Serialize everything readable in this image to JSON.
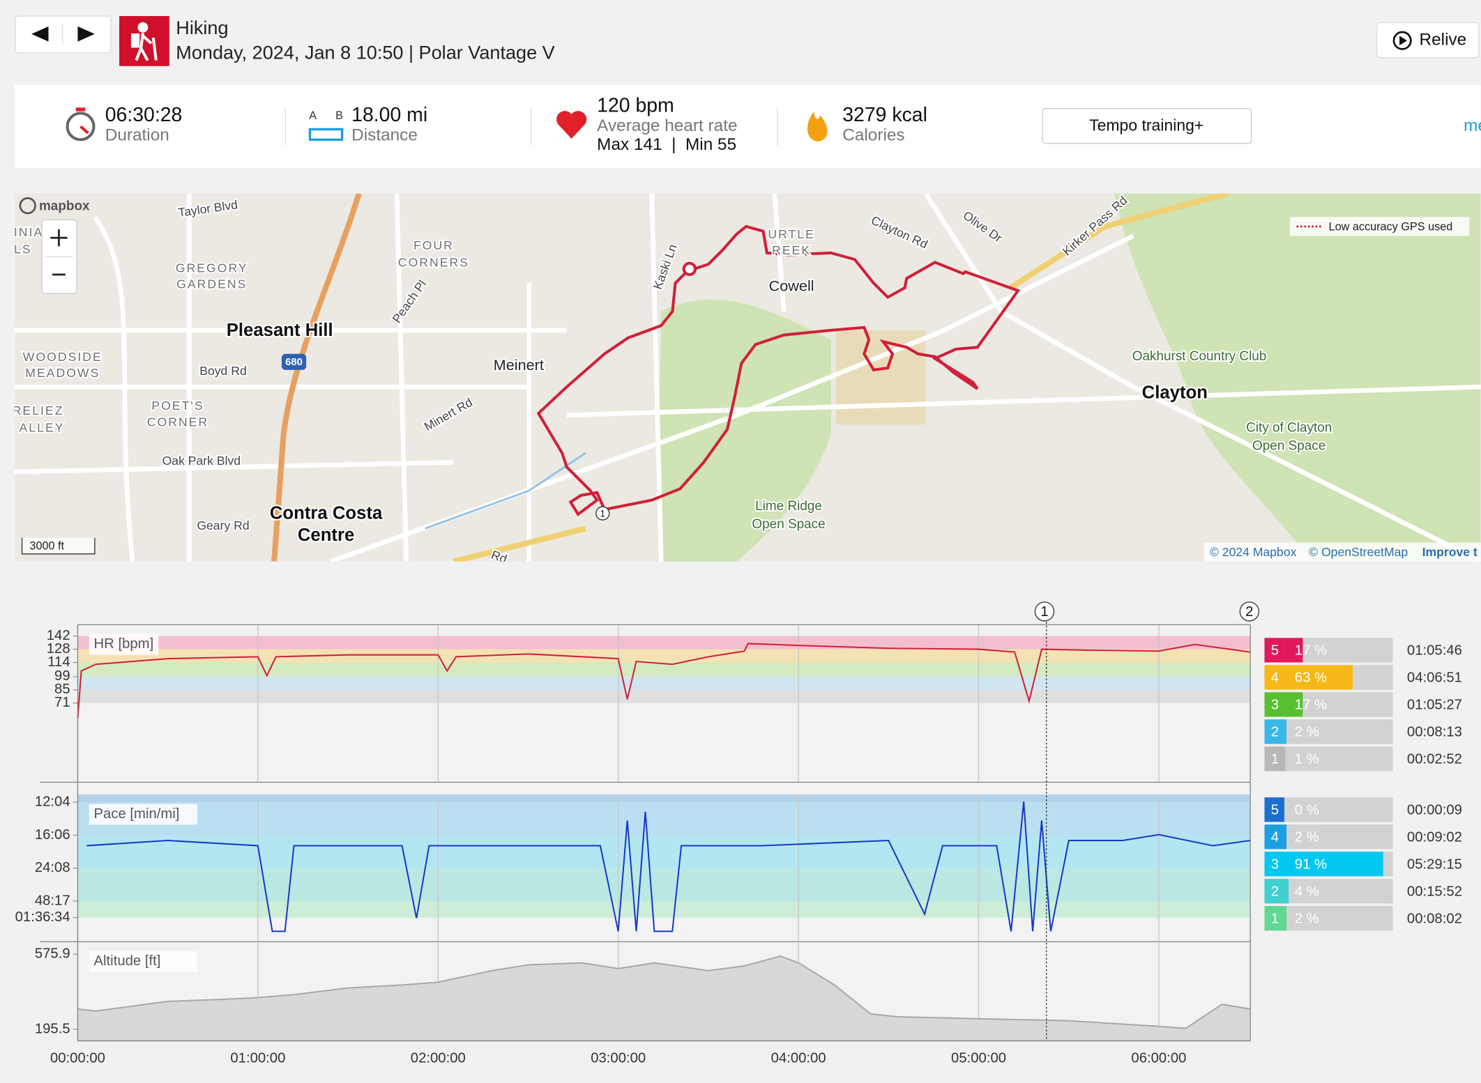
{
  "header": {
    "activity": "Hiking",
    "details": "Monday, 2024, Jan 8 10:50 | Polar Vantage V",
    "relive": "Relive"
  },
  "summary": {
    "duration": "06:30:28",
    "duration_label": "Duration",
    "distance_icon": [
      "A",
      "B"
    ],
    "distance": "18.00 mi",
    "distance_label": "Distance",
    "heart_rate": "120 bpm",
    "heart_rate_label": "Average heart rate",
    "heart_rate_range": "Max 141  |  Min 55",
    "calories": "3279 kcal",
    "calories_label": "Calories",
    "training_button": "Tempo training+",
    "more": "me"
  },
  "map": {
    "logo": "mapbox",
    "labels": [
      "Taylor Blvd",
      "GREGORY",
      "GARDENS",
      "FOUR",
      "CORNERS",
      "Pleasant Hill",
      "Peach Pl",
      "Meinert",
      "Minert Rd",
      "Boyd Rd",
      "WOODSIDE",
      "MEADOWS",
      "POET'S",
      "CORNER",
      "RELIEZ",
      "ALLEY",
      "INIA",
      "LS",
      "Oak Park Blvd",
      "Geary Rd",
      "Contra Costa",
      "Centre",
      "Kaski Ln",
      "URTLE",
      "REEK",
      "Cowell",
      "Clayton Rd",
      "Olive Dr",
      "Kirker Pass Rd",
      "Oakhurst Country Club",
      "Clayton",
      "City of Clayton",
      "Open Space",
      "Lime Ridge",
      "Open Space",
      "Rd"
    ],
    "legend": "Low accuracy GPS used",
    "scale": "3000 ft",
    "route_marker": "1",
    "highway_shield": "680",
    "attribution": [
      "© 2024 Mapbox",
      "© OpenStreetMap",
      "Improve t"
    ]
  },
  "chart_markers": [
    "1",
    "2"
  ],
  "chart_data": [
    {
      "type": "line",
      "title": "HR [bpm]",
      "color": "#d0203a",
      "xlim": [
        0,
        23428
      ],
      "ylim": [
        -12,
        154
      ],
      "yticks": [
        142,
        128,
        114,
        99,
        85,
        71
      ],
      "grid": true,
      "band_colors": [
        "#f3b6c8",
        "#f6dfa8",
        "#cfe9b8",
        "#c9e3f1",
        "#dcdcdc"
      ],
      "x": [
        0,
        72,
        360,
        1800,
        3600,
        3780,
        3960,
        5400,
        7200,
        7380,
        7560,
        9000,
        10800,
        10980,
        11160,
        11880,
        12600,
        13320,
        13392,
        14400,
        16200,
        18000,
        18720,
        19008,
        19260,
        20160,
        21600,
        22320,
        23428
      ],
      "values": [
        55,
        105,
        112,
        118,
        120,
        100,
        120,
        122,
        122,
        105,
        120,
        123,
        118,
        75,
        115,
        112,
        120,
        126,
        134,
        132,
        129,
        128,
        125,
        73,
        128,
        127,
        126,
        133,
        125
      ],
      "zones": {
        "labels": [
          "5",
          "4",
          "3",
          "2",
          "1"
        ],
        "values": [
          17,
          63,
          17,
          2,
          1
        ],
        "value_labels": [
          "17 %",
          "63 %",
          "17 %",
          "2 %",
          "1 %"
        ],
        "durations": [
          "01:05:46",
          "04:06:51",
          "01:05:27",
          "00:08:13",
          "00:02:52"
        ],
        "colors": [
          "#e0185c",
          "#f5b818",
          "#58c030",
          "#38b8e8",
          "#b8b8b8"
        ]
      }
    },
    {
      "type": "line",
      "title": "Pace [min/mi]",
      "color": "#1838c8",
      "scale": "reciprocal",
      "xlim": [
        0,
        23428
      ],
      "ylim": [
        600,
        11.4
      ],
      "yticks": [
        {
          "value": 12.0667,
          "label": "12:04"
        },
        {
          "value": 16.1,
          "label": "16:06"
        },
        {
          "value": 24.1333,
          "label": "24:08"
        },
        {
          "value": 48.2833,
          "label": "48:17"
        },
        {
          "value": 96.5667,
          "label": "01:36:34"
        }
      ],
      "grid": true,
      "band_colors": [
        "#a8cce8",
        "#b0dcf0",
        "#a8e4f0",
        "#b0e6e0",
        "#c6ecd4"
      ],
      "x": [
        180,
        1800,
        3600,
        3888,
        4140,
        4320,
        6480,
        6768,
        7020,
        9000,
        10440,
        10800,
        10980,
        11160,
        11340,
        11520,
        11880,
        12060,
        13680,
        16200,
        16920,
        17280,
        18360,
        18648,
        18900,
        19080,
        19260,
        19440,
        19800,
        20880,
        21600,
        22680,
        23428
      ],
      "values": [
        18,
        17,
        18,
        600,
        600,
        18,
        18,
        100,
        18,
        18,
        18,
        600,
        14,
        600,
        13,
        600,
        600,
        18,
        18,
        17,
        80,
        18,
        18,
        600,
        12,
        600,
        14,
        600,
        17,
        17,
        16,
        18,
        17
      ],
      "zones": {
        "labels": [
          "5",
          "4",
          "3",
          "2",
          "1"
        ],
        "values": [
          0,
          2,
          91,
          4,
          2
        ],
        "value_labels": [
          "0 %",
          "2 %",
          "91 %",
          "4 %",
          "2 %"
        ],
        "durations": [
          "00:00:09",
          "00:09:02",
          "05:29:15",
          "00:15:52",
          "00:08:02"
        ],
        "colors": [
          "#1a6fd1",
          "#1aa0e0",
          "#00c8f0",
          "#40d0d0",
          "#60d890"
        ]
      }
    },
    {
      "type": "area",
      "title": "Altitude [ft]",
      "color": "#a8a8a8",
      "fill": "#d8d8d8",
      "xlim": [
        0,
        23428
      ],
      "ylim": [
        137,
        639.3
      ],
      "yticks": [
        575.9,
        195.5
      ],
      "grid": true,
      "xticks": [
        {
          "value": 0,
          "label": "00:00:00"
        },
        {
          "value": 3600,
          "label": "01:00:00"
        },
        {
          "value": 7200,
          "label": "02:00:00"
        },
        {
          "value": 10800,
          "label": "03:00:00"
        },
        {
          "value": 14400,
          "label": "04:00:00"
        },
        {
          "value": 18000,
          "label": "05:00:00"
        },
        {
          "value": 21600,
          "label": "06:00:00"
        }
      ],
      "x": [
        0,
        360,
        1800,
        2880,
        3600,
        4320,
        5400,
        6480,
        7200,
        7560,
        8280,
        9000,
        10080,
        10800,
        11520,
        12600,
        13320,
        14040,
        14400,
        15120,
        15840,
        16380,
        18000,
        19800,
        21600,
        22140,
        22860,
        23428
      ],
      "values": [
        298,
        288,
        337,
        347,
        356,
        371,
        405,
        420,
        434,
        454,
        493,
        522,
        532,
        503,
        532,
        493,
        517,
        566,
        532,
        420,
        274,
        259,
        249,
        239,
        210,
        200,
        322,
        298
      ]
    }
  ]
}
